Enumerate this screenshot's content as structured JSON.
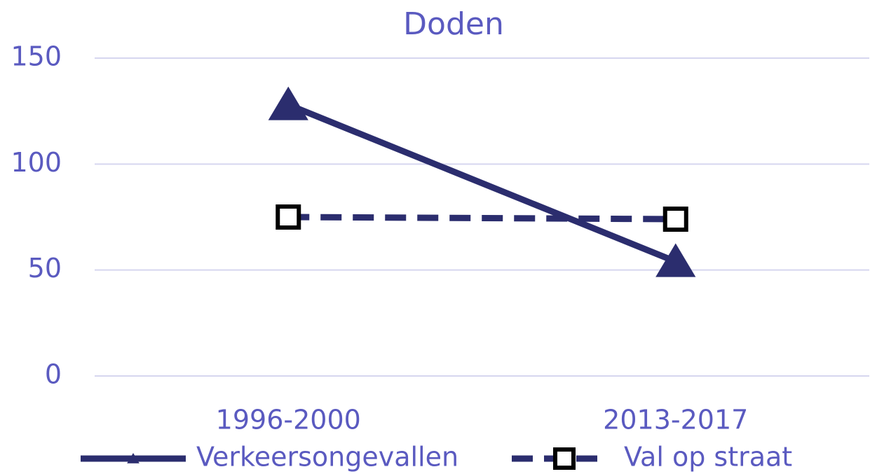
{
  "chart_data": {
    "type": "line",
    "title": "Doden",
    "categories": [
      "1996-2000",
      "2013-2017"
    ],
    "series": [
      {
        "name": "Verkeersongevallen",
        "color": "#2b2d6e",
        "marker": "triangle",
        "dash": "solid",
        "values": [
          128,
          54
        ]
      },
      {
        "name": "Val op straat",
        "color": "#2b2d6e",
        "marker": "square",
        "dash": "dashed",
        "values": [
          75,
          74
        ]
      }
    ],
    "ylim": [
      0,
      150
    ],
    "yticks": [
      0,
      50,
      100,
      150
    ],
    "grid": true,
    "legend": "bottom"
  }
}
